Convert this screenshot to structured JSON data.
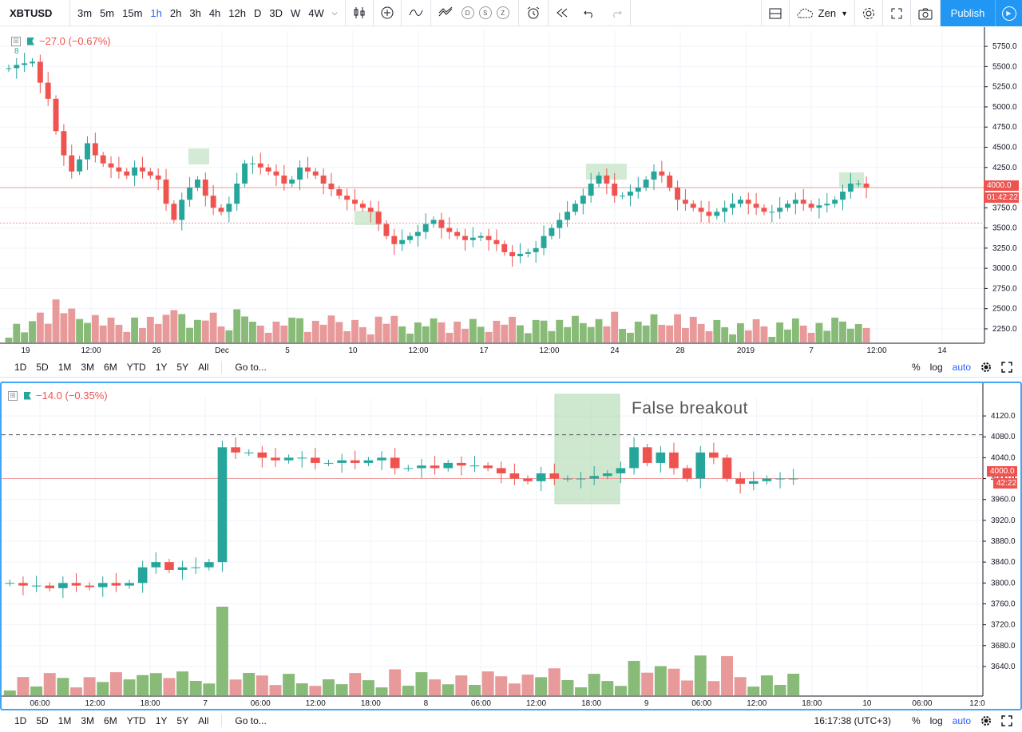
{
  "toolbar": {
    "symbol": "XBTUSD",
    "intervals": [
      "3m",
      "5m",
      "15m",
      "1h",
      "2h",
      "3h",
      "4h",
      "12h",
      "D",
      "3D",
      "W",
      "4W"
    ],
    "active_interval": "1h",
    "indicator_circles": [
      "D",
      "S",
      "Z"
    ],
    "layout_name": "Zen",
    "publish_label": "Publish"
  },
  "top_pane": {
    "legend_change": "−27.0 (−0.67%)",
    "count_label": "8",
    "price_tag": "4000.0",
    "timer_tag": "01:42:22",
    "y_ticks": [
      "5750.0",
      "5500.0",
      "5250.0",
      "5000.0",
      "4750.0",
      "4500.0",
      "4250.0",
      "4000.0",
      "3750.0",
      "3500.0",
      "3250.0",
      "3000.0",
      "2750.0",
      "2500.0",
      "2250.0"
    ],
    "x_ticks": [
      "19",
      "12:00",
      "26",
      "Dec",
      "5",
      "10",
      "12:00",
      "17",
      "12:00",
      "24",
      "28",
      "2019",
      "7",
      "12:00",
      "14"
    ]
  },
  "bottom_pane": {
    "legend_change": "−14.0 (−0.35%)",
    "price_tag": "4000.0",
    "timer_tag": "42:22",
    "annotation": "False breakout",
    "y_ticks": [
      "4120.0",
      "4080.0",
      "4040.0",
      "4000.0",
      "3960.0",
      "3920.0",
      "3880.0",
      "3840.0",
      "3800.0",
      "3760.0",
      "3720.0",
      "3680.0",
      "3640.0"
    ],
    "x_ticks": [
      "06:00",
      "12:00",
      "18:00",
      "7",
      "06:00",
      "12:00",
      "18:00",
      "8",
      "06:00",
      "12:00",
      "18:00",
      "9",
      "06:00",
      "12:00",
      "18:00",
      "10",
      "06:00",
      "12:0"
    ]
  },
  "range_bar": {
    "ranges": [
      "1D",
      "5D",
      "1M",
      "3M",
      "6M",
      "YTD",
      "1Y",
      "5Y",
      "All"
    ],
    "goto_label": "Go to...",
    "percent_label": "%",
    "log_label": "log",
    "auto_label": "auto",
    "clock": "16:17:38 (UTC+3)"
  },
  "colors": {
    "up": "#26a69a",
    "down": "#ef5350",
    "vol_up": "#88bb77",
    "vol_down": "#e8999a",
    "accent": "#2962ff",
    "zone": "#a5d6a7"
  },
  "chart_data": [
    {
      "type": "candlestick",
      "name": "XBTUSD 1h (top)",
      "ylim": [
        2200,
        5850
      ],
      "close_series": [
        5480,
        5520,
        5540,
        5560,
        5300,
        5100,
        4700,
        4400,
        4200,
        4350,
        4550,
        4400,
        4300,
        4250,
        4200,
        4150,
        4250,
        4200,
        4150,
        4100,
        3800,
        3600,
        3850,
        4000,
        4100,
        3900,
        3750,
        3700,
        3800,
        4050,
        4300,
        4300,
        4250,
        4200,
        4150,
        4050,
        4100,
        4250,
        4200,
        4150,
        4050,
        3980,
        3900,
        3850,
        3800,
        3750,
        3700,
        3550,
        3400,
        3300,
        3350,
        3400,
        3450,
        3550,
        3600,
        3500,
        3450,
        3400,
        3350,
        3380,
        3400,
        3350,
        3300,
        3200,
        3150,
        3180,
        3200,
        3250,
        3400,
        3500,
        3600,
        3700,
        3800,
        3900,
        4050,
        4150,
        4050,
        3900,
        3900,
        3950,
        4000,
        4100,
        4200,
        4150,
        4000,
        3850,
        3800,
        3750,
        3700,
        3650,
        3700,
        3750,
        3800,
        3850,
        3800,
        3750,
        3700,
        3700,
        3750,
        3800,
        3850,
        3800,
        3750,
        3780,
        3800,
        3850,
        3950,
        4050,
        4050,
        4000
      ]
    },
    {
      "type": "candlestick",
      "name": "XBTUSD 1h (bottom)",
      "ylim": [
        3620,
        4140
      ],
      "dashed_level": 4084,
      "current_price": 4000,
      "close_series": [
        3800,
        3795,
        3795,
        3790,
        3800,
        3795,
        3792,
        3800,
        3795,
        3800,
        3830,
        3840,
        3825,
        3830,
        3830,
        3840,
        4060,
        4050,
        4050,
        4040,
        4035,
        4040,
        4040,
        4030,
        4030,
        4035,
        4030,
        4035,
        4040,
        4020,
        4020,
        4025,
        4020,
        4030,
        4025,
        4025,
        4020,
        4010,
        4000,
        3995,
        4010,
        4000,
        4000,
        4000,
        4005,
        4010,
        4020,
        4060,
        4030,
        4050,
        4020,
        4000,
        4050,
        4040,
        4000,
        3990,
        3995,
        4000,
        4000,
        4000
      ]
    }
  ]
}
